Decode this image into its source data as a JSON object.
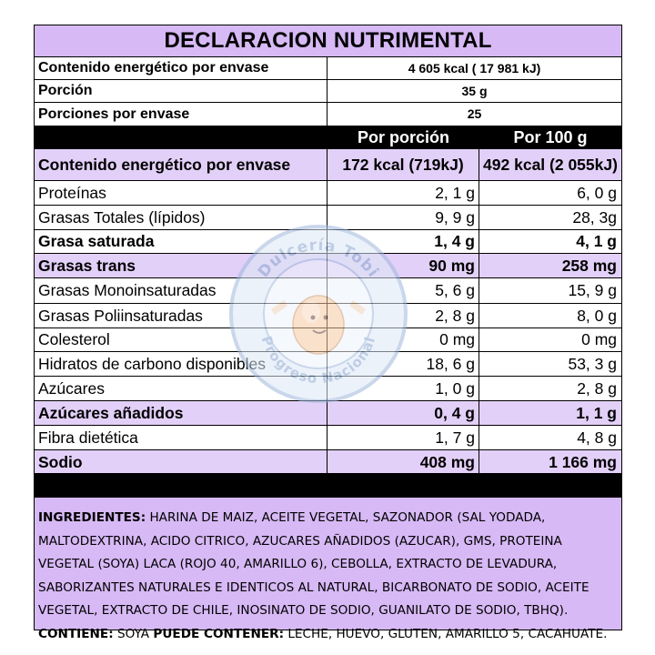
{
  "title": "DECLARACION NUTRIMENTAL",
  "info_rows": [
    {
      "label": "Contenido energético por envase",
      "value": "4 605 kcal ( 17 981 kJ)"
    },
    {
      "label": "Porción",
      "value": "35 g"
    },
    {
      "label": "Porciones por envase",
      "value": "25"
    }
  ],
  "header": {
    "per_portion": "Por porción",
    "per_100g": "Por 100 g"
  },
  "energy_row": {
    "label": "Contenido energético por envase",
    "per_portion": "172 kcal (719kJ)",
    "per_100g": "492 kcal (2 055kJ)"
  },
  "nutrients": [
    {
      "name": "Proteínas",
      "per_portion": "2, 1 g",
      "per_100g": "6, 0 g",
      "bold": false
    },
    {
      "name": "Grasas Totales (lípidos)",
      "per_portion": "9, 9 g",
      "per_100g": "28, 3g",
      "bold": false
    },
    {
      "name": "Grasa saturada",
      "per_portion": "1, 4 g",
      "per_100g": "4, 1 g",
      "bold": true
    },
    {
      "name": "Grasas trans",
      "per_portion": "90 mg",
      "per_100g": "258 mg",
      "bold": true
    },
    {
      "name": "Grasas Monoinsaturadas",
      "per_portion": "5, 6 g",
      "per_100g": "15, 9 g",
      "bold": false
    },
    {
      "name": "Grasas Poliinsaturadas",
      "per_portion": "2, 8 g",
      "per_100g": "8, 0 g",
      "bold": false
    },
    {
      "name": "Colesterol",
      "per_portion": "0 mg",
      "per_100g": "0 mg",
      "bold": false
    },
    {
      "name": "Hidratos de carbono disponibles",
      "per_portion": "18, 6 g",
      "per_100g": "53, 3 g",
      "bold": false
    },
    {
      "name": "Azúcares",
      "per_portion": "1, 0 g",
      "per_100g": "2, 8 g",
      "bold": false
    },
    {
      "name": "Azúcares añadidos",
      "per_portion": "0, 4 g",
      "per_100g": "1, 1 g",
      "bold": true
    },
    {
      "name": "Fibra dietética",
      "per_portion": "1, 7 g",
      "per_100g": "4, 8 g",
      "bold": false
    },
    {
      "name": "Sodio",
      "per_portion": "408 mg",
      "per_100g": "1 166 mg",
      "bold": true
    }
  ],
  "ingredients": {
    "label": "INGREDIENTES:",
    "text": " HARINA DE MAIZ, ACEITE VEGETAL, SAZONADOR (SAL YODADA, MALTODEXTRINA, ACIDO CITRICO, AZUCARES AÑADIDOS (AZUCAR), GMS, PROTEINA VEGETAL (SOYA) LACA (ROJO 40, AMARILLO 6), CEBOLLA, EXTRACTO DE LEVADURA, SABORIZANTES NATURALES E IDENTICOS AL NATURAL, BICARBONATO DE SODIO, ACEITE VEGETAL, EXTRACTO DE CHILE, INOSINATO DE SODIO, GUANILATO DE SODIO, TBHQ).",
    "contains_label": "CONTIENE:",
    "contains_text": " SOYA ",
    "may_contain_label": "PUEDE CONTENER:",
    "may_contain_text": " LECHE, HUEVO, GLUTEN, AMARILLO 5, CACAHUATE."
  },
  "watermark": {
    "top_text": "Dulcería Tobi",
    "bottom_text": "Progreso Nacional"
  },
  "colors": {
    "lavender": "#d7b9f5",
    "lavender_light": "#e2d0f8",
    "black": "#000000"
  }
}
